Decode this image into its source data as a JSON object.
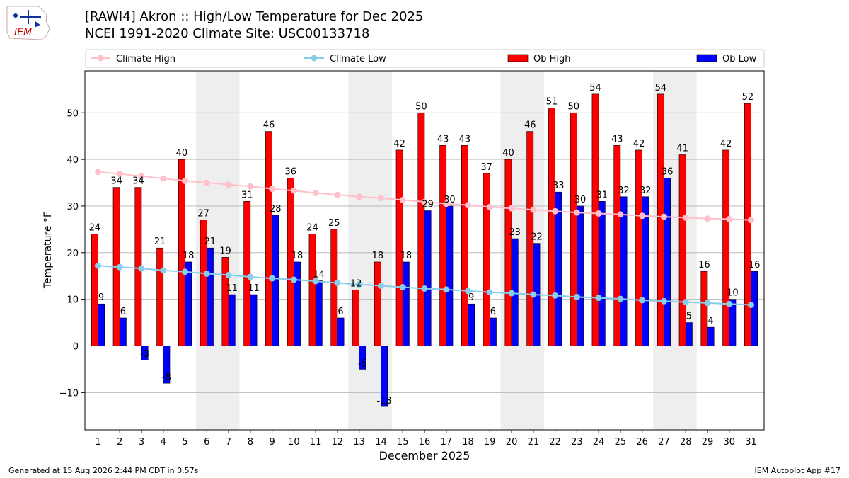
{
  "header": {
    "logo_text": "IEM",
    "title": "[RAWI4] Akron :: High/Low Temperature for Dec 2025",
    "subtitle": "NCEI 1991-2020 Climate Site: USC00133718"
  },
  "footer": {
    "generated": "Generated at 15 Aug 2026 2:44 PM CDT in 0.57s",
    "app": "IEM Autoplot App #17"
  },
  "colors": {
    "ob_high": "#ff0000",
    "ob_low": "#0000ff",
    "climate_high": "#ffc0cb",
    "climate_low": "#87ceeb",
    "weekend_shade": "#eeeeee",
    "grid": "#b0b0b0"
  },
  "chart_data": {
    "type": "bar",
    "xlabel": "December 2025",
    "ylabel": "Temperature °F",
    "ylim": [
      -18,
      59
    ],
    "yticks": [
      -10,
      0,
      10,
      20,
      30,
      40,
      50
    ],
    "grid": "horizontal",
    "legend": {
      "placement": "top",
      "entries": [
        "Climate High",
        "Climate Low",
        "Ob High",
        "Ob Low"
      ]
    },
    "x": [
      1,
      2,
      3,
      4,
      5,
      6,
      7,
      8,
      9,
      10,
      11,
      12,
      13,
      14,
      15,
      16,
      17,
      18,
      19,
      20,
      21,
      22,
      23,
      24,
      25,
      26,
      27,
      28,
      29,
      30,
      31
    ],
    "shaded_days": [
      6,
      7,
      13,
      14,
      20,
      21,
      27,
      28
    ],
    "series": [
      {
        "name": "Ob High",
        "kind": "bar",
        "values": [
          24,
          34,
          34,
          21,
          40,
          27,
          19,
          31,
          46,
          36,
          24,
          25,
          12,
          18,
          42,
          50,
          43,
          43,
          37,
          40,
          46,
          51,
          50,
          54,
          43,
          42,
          54,
          41,
          16,
          42,
          52
        ]
      },
      {
        "name": "Ob Low",
        "kind": "bar",
        "values": [
          9,
          6,
          -3,
          -8,
          18,
          21,
          11,
          11,
          28,
          18,
          14,
          6,
          -5,
          -13,
          18,
          29,
          30,
          9,
          6,
          23,
          22,
          33,
          30,
          31,
          32,
          32,
          36,
          5,
          4,
          10,
          16
        ]
      },
      {
        "name": "Climate High",
        "kind": "line",
        "values": [
          37.3,
          36.9,
          36.4,
          35.9,
          35.4,
          35.0,
          34.6,
          34.2,
          33.7,
          33.3,
          32.8,
          32.4,
          32.0,
          31.7,
          31.3,
          30.9,
          30.5,
          30.2,
          29.8,
          29.5,
          29.2,
          28.9,
          28.6,
          28.4,
          28.2,
          27.9,
          27.7,
          27.5,
          27.3,
          27.2,
          27.0
        ]
      },
      {
        "name": "Climate Low",
        "kind": "line",
        "values": [
          17.2,
          16.9,
          16.6,
          16.2,
          15.9,
          15.5,
          15.2,
          14.8,
          14.5,
          14.2,
          13.9,
          13.5,
          13.2,
          12.9,
          12.6,
          12.3,
          12.1,
          11.8,
          11.5,
          11.3,
          11.0,
          10.8,
          10.5,
          10.3,
          10.1,
          9.8,
          9.6,
          9.4,
          9.2,
          9.0,
          8.8
        ]
      }
    ]
  }
}
